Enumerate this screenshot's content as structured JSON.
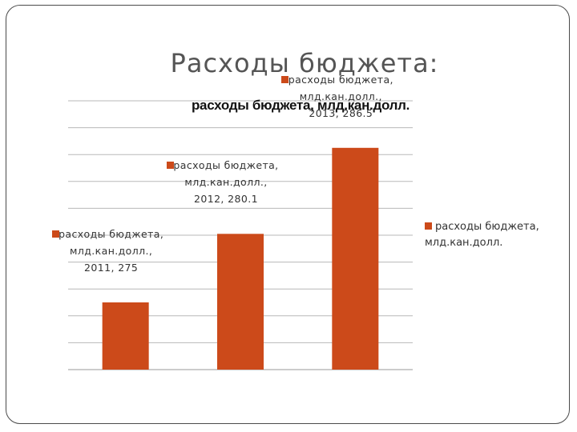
{
  "slide": {
    "title": "Расходы бюджета:"
  },
  "chart_data": {
    "type": "bar",
    "title": "расходы бюджета, млд.кан.долл.",
    "categories": [
      "2011",
      "2012",
      "2013"
    ],
    "series": [
      {
        "name": "расходы бюджета, млд.кан.долл.",
        "values": [
          275,
          280.1,
          286.5
        ],
        "color": "#cc4a1a"
      }
    ],
    "data_labels": [
      "расходы бюджета, млд.кан.долл., 2011, 275",
      "расходы бюджета, млд.кан.долл., 2012, 280.1",
      "расходы бюджета, млд.кан.долл., 2013, 286.5"
    ],
    "xlabel": "",
    "ylabel": "",
    "ylim": [
      270,
      290
    ],
    "grid": true,
    "legend": "right",
    "legend_label": "расходы бюджета, млд.кан.долл."
  }
}
